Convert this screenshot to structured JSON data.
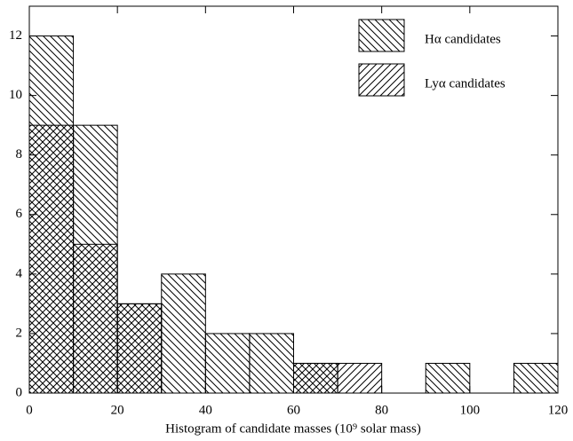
{
  "chart_data": {
    "type": "histogram",
    "xlabel": "Histogram of candidate masses (10⁹ solar mass)",
    "bins": [
      0,
      10,
      20,
      30,
      40,
      50,
      60,
      70,
      80,
      90,
      100,
      110,
      120
    ],
    "series": [
      {
        "name": "Hα candidates",
        "color": "#000000",
        "hatch": "backslash",
        "values": [
          12,
          9,
          3,
          4,
          2,
          2,
          1,
          0,
          0,
          1,
          0,
          1
        ]
      },
      {
        "name": "Lyα candidates",
        "color": "#000000",
        "hatch": "slash",
        "values": [
          9,
          5,
          3,
          0,
          0,
          0,
          1,
          1,
          0,
          0,
          0,
          0
        ]
      }
    ],
    "xlim": [
      0,
      120
    ],
    "xticks": [
      0,
      20,
      40,
      60,
      80,
      100,
      120
    ],
    "ylim": [
      0,
      13
    ],
    "yticks": [
      0,
      2,
      4,
      6,
      8,
      10,
      12
    ],
    "legend": "upper right"
  }
}
